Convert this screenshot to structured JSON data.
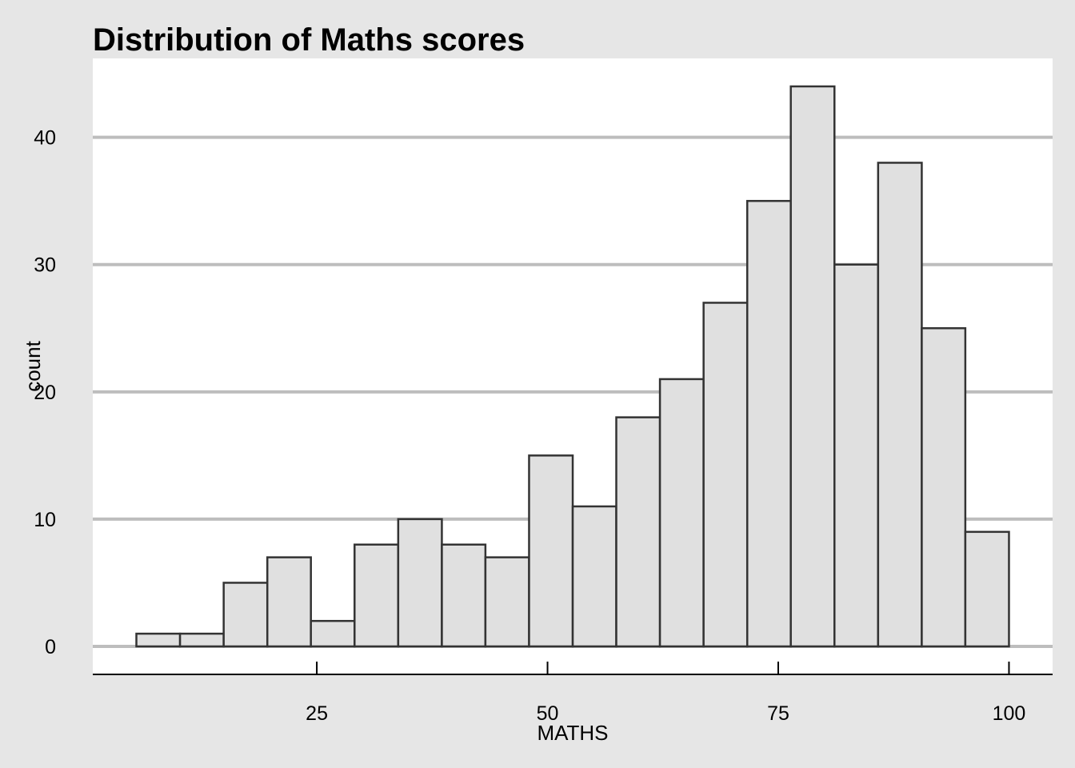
{
  "chart_data": {
    "type": "bar",
    "title": "Distribution of Maths scores",
    "xlabel": "MATHS",
    "ylabel": "count",
    "bin_width": 4.727,
    "bins": [
      {
        "x_start": 5.45,
        "x_end": 10.18,
        "count": 1
      },
      {
        "x_start": 10.18,
        "x_end": 14.91,
        "count": 1
      },
      {
        "x_start": 14.91,
        "x_end": 19.64,
        "count": 5
      },
      {
        "x_start": 19.64,
        "x_end": 24.36,
        "count": 7
      },
      {
        "x_start": 24.36,
        "x_end": 29.09,
        "count": 2
      },
      {
        "x_start": 29.09,
        "x_end": 33.82,
        "count": 8
      },
      {
        "x_start": 33.82,
        "x_end": 38.55,
        "count": 10
      },
      {
        "x_start": 38.55,
        "x_end": 43.27,
        "count": 8
      },
      {
        "x_start": 43.27,
        "x_end": 48.0,
        "count": 7
      },
      {
        "x_start": 48.0,
        "x_end": 52.73,
        "count": 15
      },
      {
        "x_start": 52.73,
        "x_end": 57.45,
        "count": 11
      },
      {
        "x_start": 57.45,
        "x_end": 62.18,
        "count": 18
      },
      {
        "x_start": 62.18,
        "x_end": 66.91,
        "count": 21
      },
      {
        "x_start": 66.91,
        "x_end": 71.64,
        "count": 27
      },
      {
        "x_start": 71.64,
        "x_end": 76.36,
        "count": 35
      },
      {
        "x_start": 76.36,
        "x_end": 81.09,
        "count": 44
      },
      {
        "x_start": 81.09,
        "x_end": 85.82,
        "count": 30
      },
      {
        "x_start": 85.82,
        "x_end": 90.55,
        "count": 38
      },
      {
        "x_start": 90.55,
        "x_end": 95.27,
        "count": 25
      },
      {
        "x_start": 95.27,
        "x_end": 100.0,
        "count": 9
      }
    ],
    "x_ticks": [
      25,
      50,
      75,
      100
    ],
    "x_tick_labels": [
      "25",
      "50",
      "75",
      "100"
    ],
    "y_ticks": [
      0,
      10,
      20,
      30,
      40
    ],
    "y_tick_labels": [
      "0",
      "10",
      "20",
      "30",
      "40"
    ],
    "xlim": [
      0.726,
      104.727
    ],
    "ylim": [
      -2.2,
      46.2
    ],
    "grid": "horizontal",
    "legend": "none",
    "colors": {
      "background": "#e6e6e6",
      "panel": "#ffffff",
      "bar_fill": "#e0e0e0",
      "bar_stroke": "#333333",
      "gridline": "#bdbdbd"
    }
  }
}
